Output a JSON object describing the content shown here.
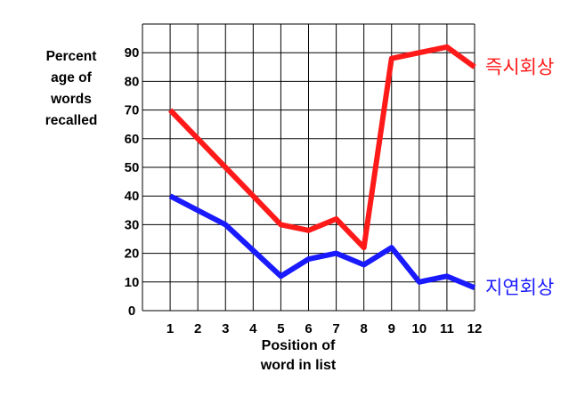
{
  "chart_data": {
    "type": "line",
    "ylabel_lines": [
      "Percent",
      "age of",
      "words",
      "recalled"
    ],
    "xlabel_lines": [
      "Position of",
      "word in list"
    ],
    "x": [
      1,
      2,
      3,
      4,
      5,
      6,
      7,
      8,
      9,
      10,
      11,
      12
    ],
    "xticks": [
      "1",
      "2",
      "3",
      "4",
      "5",
      "6",
      "7",
      "8",
      "9",
      "10",
      "11",
      "12"
    ],
    "yticks": [
      "0",
      "10",
      "20",
      "30",
      "40",
      "50",
      "60",
      "70",
      "80",
      "90"
    ],
    "ylim": [
      0,
      100
    ],
    "grid": true,
    "series": [
      {
        "name": "즉시회상",
        "color": "#ff1a1a",
        "values": [
          70,
          60,
          50,
          40,
          30,
          28,
          32,
          22,
          88,
          90,
          92,
          85
        ]
      },
      {
        "name": "지연회상",
        "color": "#1a1aff",
        "values": [
          40,
          35,
          30,
          21,
          12,
          18,
          20,
          16,
          22,
          10,
          12,
          8
        ]
      }
    ]
  }
}
